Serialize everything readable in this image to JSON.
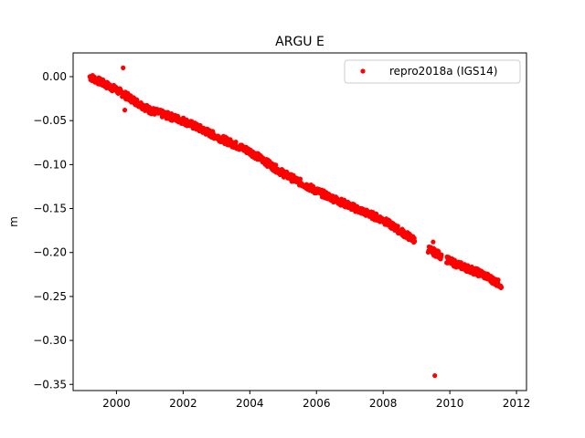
{
  "chart_data": {
    "type": "scatter",
    "title": "ARGU E",
    "xlabel": "",
    "ylabel": "m",
    "xlim": [
      1998.7,
      2012.3
    ],
    "ylim": [
      -0.357,
      0.027
    ],
    "xticks": [
      2000,
      2002,
      2004,
      2006,
      2008,
      2010,
      2012
    ],
    "yticks": [
      0.0,
      -0.05,
      -0.1,
      -0.15,
      -0.2,
      -0.25,
      -0.3,
      -0.35
    ],
    "ytick_labels": [
      "0.00",
      "−0.05",
      "−0.10",
      "−0.15",
      "−0.20",
      "−0.25",
      "−0.30",
      "−0.35"
    ],
    "legend": {
      "location": "top-right"
    },
    "series": [
      {
        "name": "repro2018a (IGS14)",
        "color": "#ff0000",
        "marker": "circle",
        "trend": {
          "x": [
            1999.2,
            2000.0,
            2001.0,
            2002.0,
            2003.0,
            2004.0,
            2005.0,
            2006.0,
            2007.0,
            2008.0,
            2008.9,
            2009.4,
            2009.7,
            2010.0,
            2011.0,
            2011.55
          ],
          "y": [
            0.0,
            -0.015,
            -0.038,
            -0.05,
            -0.068,
            -0.085,
            -0.11,
            -0.13,
            -0.147,
            -0.163,
            -0.185,
            -0.197,
            -0.203,
            -0.21,
            -0.225,
            -0.237
          ],
          "spread": 0.004,
          "gaps": [
            [
              2008.95,
              2009.35
            ],
            [
              2009.75,
              2009.9
            ]
          ]
        },
        "outliers": [
          {
            "x": 2000.2,
            "y": 0.01
          },
          {
            "x": 2000.25,
            "y": -0.038
          },
          {
            "x": 2009.5,
            "y": -0.188
          },
          {
            "x": 2009.55,
            "y": -0.34
          },
          {
            "x": 2004.5,
            "y": -0.094
          },
          {
            "x": 2005.0,
            "y": -0.107
          }
        ]
      }
    ]
  }
}
